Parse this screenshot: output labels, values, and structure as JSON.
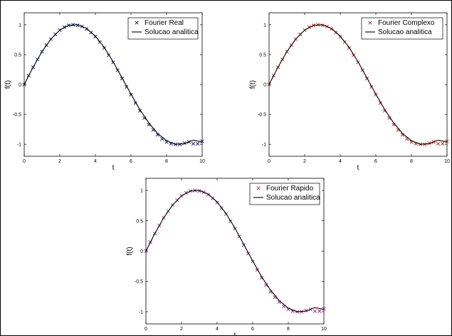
{
  "chart_data": [
    {
      "type": "line",
      "xlabel": "t",
      "ylabel": "f(t)",
      "xlim": [
        0,
        10
      ],
      "ylim": [
        -1.2,
        1.2
      ],
      "xticks": [
        "0",
        "2",
        "4",
        "6",
        "8",
        "10"
      ],
      "yticks": [
        "-1",
        "-0.5",
        "0",
        "0.5",
        "1"
      ],
      "legend_position": "top-right",
      "series": [
        {
          "name": "Fourier Real",
          "style": "markers",
          "marker": "x",
          "color": "#1f2a6b",
          "x": [
            0,
            0.25,
            0.5,
            0.75,
            1,
            1.25,
            1.5,
            1.75,
            2,
            2.25,
            2.5,
            2.75,
            3,
            3.25,
            3.5,
            3.75,
            4,
            4.25,
            4.5,
            4.75,
            5,
            5.25,
            5.5,
            5.75,
            6,
            6.25,
            6.5,
            6.75,
            7,
            7.25,
            7.5,
            7.75,
            8,
            8.25,
            8.5,
            8.75,
            9,
            9.25,
            9.5,
            9.75,
            10
          ],
          "y": [
            0.0,
            0.15,
            0.29,
            0.42,
            0.55,
            0.66,
            0.76,
            0.84,
            0.91,
            0.96,
            0.99,
            1.0,
            0.99,
            0.97,
            0.93,
            0.87,
            0.8,
            0.71,
            0.61,
            0.49,
            0.37,
            0.24,
            0.1,
            -0.04,
            -0.17,
            -0.31,
            -0.44,
            -0.56,
            -0.67,
            -0.76,
            -0.84,
            -0.91,
            -0.96,
            -0.99,
            -1.0,
            -1.0,
            -0.98,
            -0.96,
            -0.99,
            -0.99,
            -0.95
          ]
        },
        {
          "name": "Solucao analitica",
          "style": "line",
          "color": "#000000",
          "x": [
            0,
            0.5,
            1,
            1.5,
            2,
            2.5,
            3,
            3.5,
            4,
            4.5,
            5,
            5.5,
            6,
            6.5,
            7,
            7.5,
            8,
            8.5,
            9,
            9.5,
            10
          ],
          "y": [
            0.0,
            0.29,
            0.55,
            0.76,
            0.91,
            0.99,
            1.0,
            0.94,
            0.81,
            0.62,
            0.38,
            0.11,
            -0.16,
            -0.42,
            -0.64,
            -0.82,
            -0.94,
            -1.0,
            -0.99,
            -0.93,
            -0.96
          ]
        }
      ]
    },
    {
      "type": "line",
      "xlabel": "t",
      "ylabel": "f(t)",
      "xlim": [
        0,
        10
      ],
      "ylim": [
        -1.2,
        1.2
      ],
      "xticks": [
        "0",
        "2",
        "4",
        "6",
        "8",
        "10"
      ],
      "yticks": [
        "-1",
        "-0.5",
        "0",
        "0.5",
        "1"
      ],
      "legend_position": "top-right",
      "series": [
        {
          "name": "Fourier Complexo",
          "style": "markers",
          "marker": "x",
          "color": "#c0392b",
          "x": [
            0,
            0.25,
            0.5,
            0.75,
            1,
            1.25,
            1.5,
            1.75,
            2,
            2.25,
            2.5,
            2.75,
            3,
            3.25,
            3.5,
            3.75,
            4,
            4.25,
            4.5,
            4.75,
            5,
            5.25,
            5.5,
            5.75,
            6,
            6.25,
            6.5,
            6.75,
            7,
            7.25,
            7.5,
            7.75,
            8,
            8.25,
            8.5,
            8.75,
            9,
            9.25,
            9.5,
            9.75,
            10
          ],
          "y": [
            0.0,
            0.15,
            0.29,
            0.42,
            0.55,
            0.66,
            0.76,
            0.84,
            0.91,
            0.96,
            0.99,
            1.0,
            0.99,
            0.97,
            0.93,
            0.87,
            0.8,
            0.71,
            0.61,
            0.49,
            0.37,
            0.24,
            0.1,
            -0.04,
            -0.17,
            -0.31,
            -0.44,
            -0.56,
            -0.67,
            -0.76,
            -0.84,
            -0.91,
            -0.96,
            -0.99,
            -1.0,
            -1.0,
            -0.98,
            -0.96,
            -0.99,
            -0.99,
            -0.95
          ]
        },
        {
          "name": "Solucao analitica",
          "style": "line",
          "color": "#000000",
          "x": [
            0,
            0.5,
            1,
            1.5,
            2,
            2.5,
            3,
            3.5,
            4,
            4.5,
            5,
            5.5,
            6,
            6.5,
            7,
            7.5,
            8,
            8.5,
            9,
            9.5,
            10
          ],
          "y": [
            0.0,
            0.29,
            0.55,
            0.76,
            0.91,
            0.99,
            1.0,
            0.94,
            0.81,
            0.62,
            0.38,
            0.11,
            -0.16,
            -0.42,
            -0.64,
            -0.82,
            -0.94,
            -1.0,
            -0.99,
            -0.93,
            -0.96
          ]
        }
      ]
    },
    {
      "type": "line",
      "xlabel": "t",
      "ylabel": "f(t)",
      "xlim": [
        0,
        10
      ],
      "ylim": [
        -1.2,
        1.2
      ],
      "xticks": [
        "0",
        "2",
        "4",
        "6",
        "8",
        "10"
      ],
      "yticks": [
        "-1",
        "-0.5",
        "0",
        "0.5",
        "1"
      ],
      "legend_position": "top-right",
      "series": [
        {
          "name": "Fourier Rapido",
          "style": "markers",
          "marker": "x",
          "color": "#9b3b8a",
          "x": [
            0,
            0.25,
            0.5,
            0.75,
            1,
            1.25,
            1.5,
            1.75,
            2,
            2.25,
            2.5,
            2.75,
            3,
            3.25,
            3.5,
            3.75,
            4,
            4.25,
            4.5,
            4.75,
            5,
            5.25,
            5.5,
            5.75,
            6,
            6.25,
            6.5,
            6.75,
            7,
            7.25,
            7.5,
            7.75,
            8,
            8.25,
            8.5,
            8.75,
            9,
            9.25,
            9.5,
            9.75,
            10
          ],
          "y": [
            0.0,
            0.15,
            0.29,
            0.42,
            0.55,
            0.66,
            0.76,
            0.84,
            0.91,
            0.96,
            0.99,
            1.0,
            0.99,
            0.97,
            0.93,
            0.87,
            0.8,
            0.71,
            0.61,
            0.49,
            0.37,
            0.24,
            0.1,
            -0.04,
            -0.17,
            -0.31,
            -0.44,
            -0.56,
            -0.67,
            -0.76,
            -0.84,
            -0.91,
            -0.96,
            -0.99,
            -1.0,
            -1.0,
            -0.98,
            -0.96,
            -0.99,
            -0.99,
            -0.95
          ]
        },
        {
          "name": "Solucao analitica",
          "style": "line",
          "color": "#000000",
          "x": [
            0,
            0.5,
            1,
            1.5,
            2,
            2.5,
            3,
            3.5,
            4,
            4.5,
            5,
            5.5,
            6,
            6.5,
            7,
            7.5,
            8,
            8.5,
            9,
            9.5,
            10
          ],
          "y": [
            0.0,
            0.29,
            0.55,
            0.76,
            0.91,
            0.99,
            1.0,
            0.94,
            0.81,
            0.62,
            0.38,
            0.11,
            -0.16,
            -0.42,
            -0.64,
            -0.82,
            -0.94,
            -1.0,
            -0.99,
            -0.93,
            -0.96
          ]
        }
      ]
    }
  ]
}
